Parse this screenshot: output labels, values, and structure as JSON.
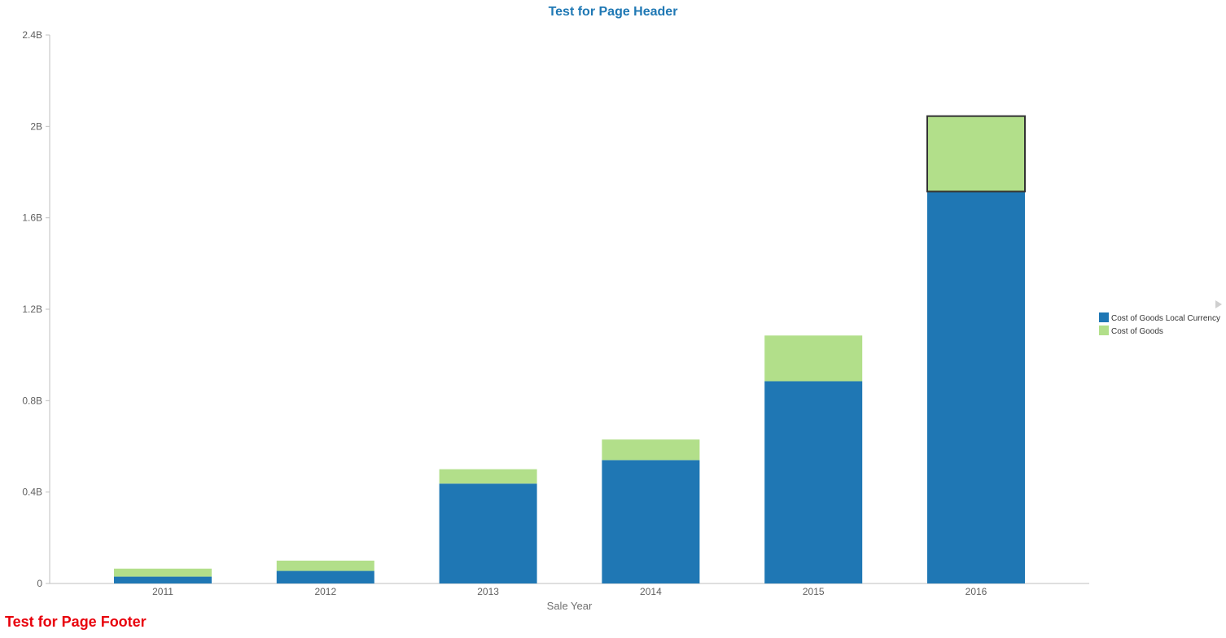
{
  "page": {
    "header": "Test for Page Header",
    "footer": "Test for Page Footer"
  },
  "colors": {
    "header": "#1f78b4",
    "footer": "#e8000b",
    "axis": "#bfbfbf",
    "tick_text": "#606060",
    "highlight_stroke": "#333333"
  },
  "chart_data": {
    "type": "bar",
    "stacked": true,
    "categories": [
      "2011",
      "2012",
      "2013",
      "2014",
      "2015",
      "2016"
    ],
    "series": [
      {
        "name": "Cost of Goods Local Currency",
        "color": "#1f77b4",
        "values": [
          30000000,
          55000000,
          437000000,
          540000000,
          885000000,
          1715000000
        ]
      },
      {
        "name": "Cost of Goods",
        "color": "#b2df8a",
        "values": [
          35000000,
          45000000,
          63000000,
          90000000,
          200000000,
          330000000
        ]
      }
    ],
    "xlabel": "Sale Year",
    "ylabel": "",
    "ylim": [
      0,
      2400000000
    ],
    "yticks": [
      {
        "value": 0,
        "label": "0"
      },
      {
        "value": 400000000,
        "label": "0.4B"
      },
      {
        "value": 800000000,
        "label": "0.8B"
      },
      {
        "value": 1200000000,
        "label": "1.2B"
      },
      {
        "value": 1600000000,
        "label": "1.6B"
      },
      {
        "value": 2000000000,
        "label": "2B"
      },
      {
        "value": 2400000000,
        "label": "2.4B"
      }
    ],
    "grid": false,
    "legend": "right",
    "highlighted": {
      "category": "2016",
      "series": "Cost of Goods"
    }
  }
}
